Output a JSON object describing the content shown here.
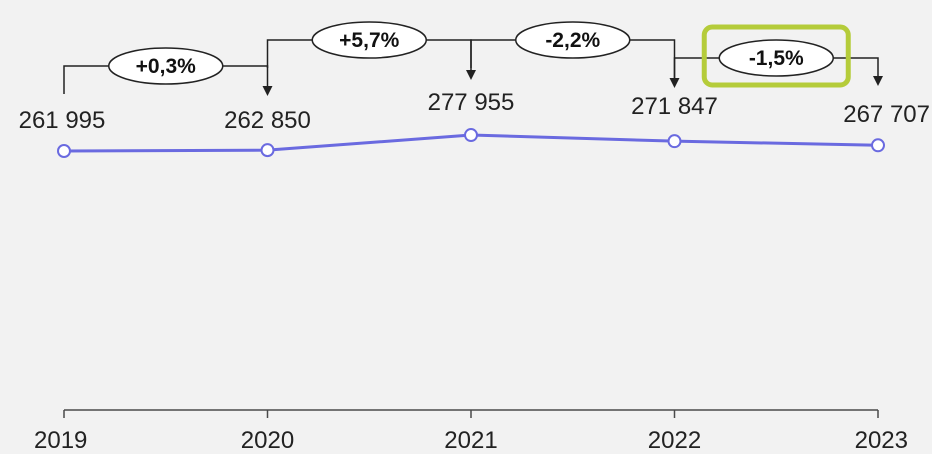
{
  "chart_data": {
    "type": "line",
    "title": "",
    "xlabel": "",
    "ylabel": "",
    "categories": [
      "2019",
      "2020",
      "2021",
      "2022",
      "2023"
    ],
    "series": [
      {
        "values": [
          261995,
          262850,
          277955,
          271847,
          267707
        ],
        "data_labels": [
          "261 995",
          "262 850",
          "277 955",
          "271 847",
          "267 707"
        ],
        "color": "#6a6ae0",
        "marker": "open-circle"
      }
    ],
    "changes": [
      {
        "from": "2019",
        "to": "2020",
        "label": "+0,3%"
      },
      {
        "from": "2020",
        "to": "2021",
        "label": "+5,7%"
      },
      {
        "from": "2021",
        "to": "2022",
        "label": "-2,2%"
      },
      {
        "from": "2022",
        "to": "2023",
        "label": "-1,5%",
        "highlighted": true
      }
    ],
    "highlight_color": "#b5cc3a",
    "grid": false,
    "legend": "none"
  }
}
